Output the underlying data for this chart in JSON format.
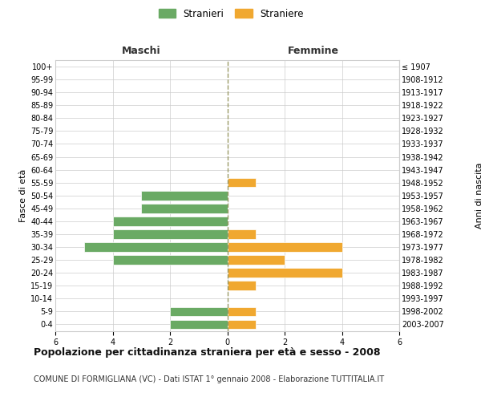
{
  "age_groups": [
    "100+",
    "95-99",
    "90-94",
    "85-89",
    "80-84",
    "75-79",
    "70-74",
    "65-69",
    "60-64",
    "55-59",
    "50-54",
    "45-49",
    "40-44",
    "35-39",
    "30-34",
    "25-29",
    "20-24",
    "15-19",
    "10-14",
    "5-9",
    "0-4"
  ],
  "birth_years": [
    "≤ 1907",
    "1908-1912",
    "1913-1917",
    "1918-1922",
    "1923-1927",
    "1928-1932",
    "1933-1937",
    "1938-1942",
    "1943-1947",
    "1948-1952",
    "1953-1957",
    "1958-1962",
    "1963-1967",
    "1968-1972",
    "1973-1977",
    "1978-1982",
    "1983-1987",
    "1988-1992",
    "1993-1997",
    "1998-2002",
    "2003-2007"
  ],
  "males": [
    0,
    0,
    0,
    0,
    0,
    0,
    0,
    0,
    0,
    0,
    3,
    3,
    4,
    4,
    5,
    4,
    0,
    0,
    0,
    2,
    2
  ],
  "females": [
    0,
    0,
    0,
    0,
    0,
    0,
    0,
    0,
    0,
    1,
    0,
    0,
    0,
    1,
    4,
    2,
    4,
    1,
    0,
    1,
    1
  ],
  "male_color": "#6aaa64",
  "female_color": "#f0a830",
  "bar_edge_color": "white",
  "grid_color": "#cccccc",
  "title": "Popolazione per cittadinanza straniera per età e sesso - 2008",
  "subtitle": "COMUNE DI FORMIGLIANA (VC) - Dati ISTAT 1° gennaio 2008 - Elaborazione TUTTITALIA.IT",
  "ylabel_left": "Fasce di età",
  "ylabel_right": "Anni di nascita",
  "header_left": "Maschi",
  "header_right": "Femmine",
  "legend_male": "Stranieri",
  "legend_female": "Straniere",
  "xlim": 6,
  "background_color": "#ffffff",
  "center_line_color": "#999966"
}
